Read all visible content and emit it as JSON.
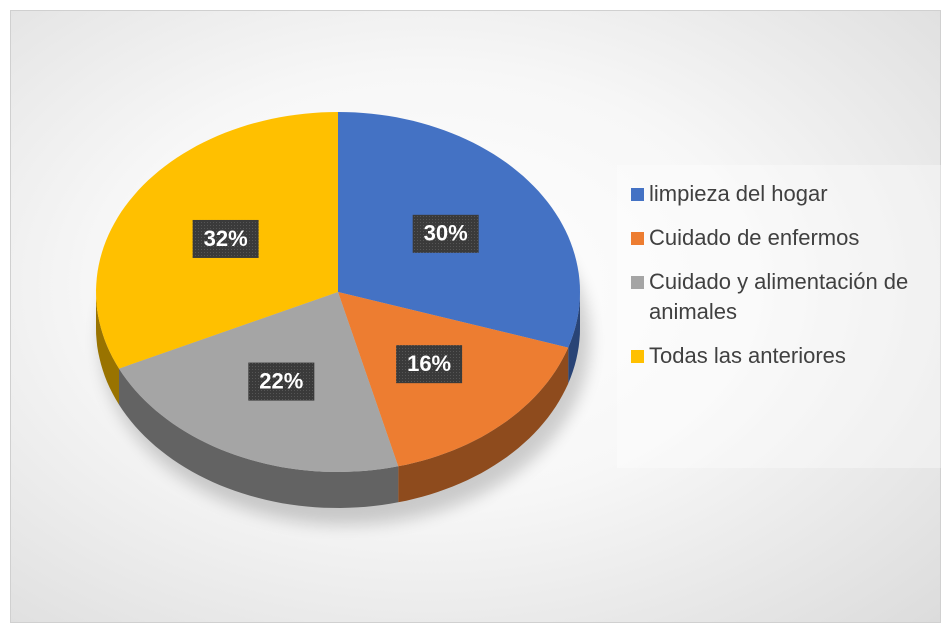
{
  "chart_data": {
    "type": "pie",
    "categories": [
      "limpieza del hogar",
      "Cuidado de enfermos",
      "Cuidado y alimentación de animales",
      "Todas las anteriores"
    ],
    "values": [
      30,
      16,
      22,
      32
    ],
    "value_labels": [
      "30%",
      "16%",
      "22%",
      "32%"
    ],
    "colors": [
      "#4472c4",
      "#ed7d31",
      "#a5a5a5",
      "#ffc000"
    ],
    "legend": "right"
  }
}
